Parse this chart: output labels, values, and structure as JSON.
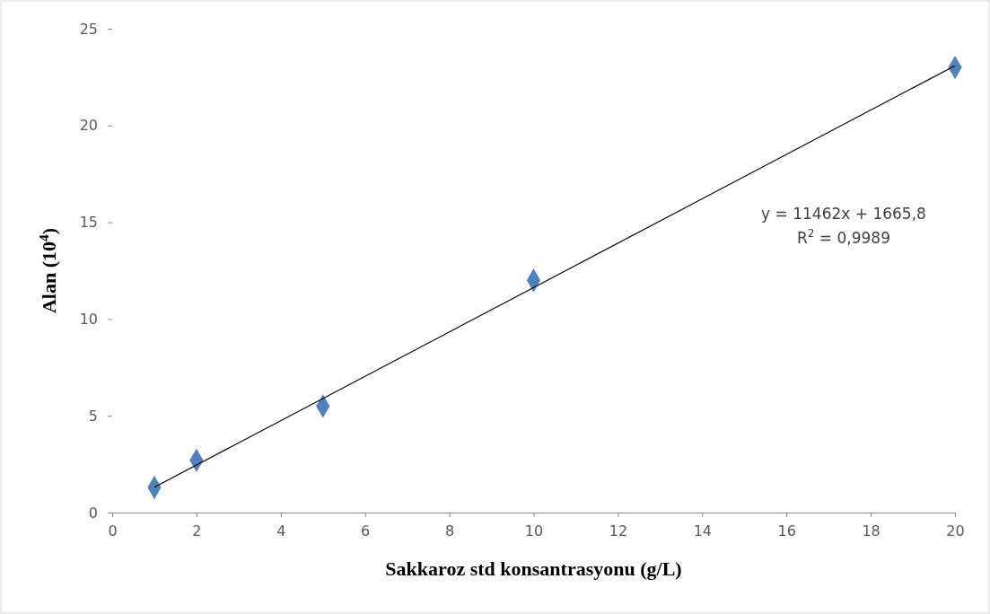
{
  "chart_data": {
    "type": "scatter",
    "xlabel": "Sakkaroz std konsantrasyonu (g/L)",
    "ylabel": "Alan (10$^{4}$)",
    "xlim": [
      0,
      20
    ],
    "xticks": [
      0,
      2,
      4,
      6,
      8,
      10,
      12,
      14,
      16,
      18,
      20
    ],
    "ylim": [
      0,
      25
    ],
    "yticks": [
      0,
      5,
      10,
      15,
      20,
      25
    ],
    "grid": false,
    "marker": "diamond",
    "series": [
      {
        "color": "#4f81bd",
        "x": [
          1,
          2,
          5,
          10,
          20
        ],
        "values": [
          1.3,
          2.7,
          5.5,
          12,
          23
        ]
      },
      {
        "type": "line",
        "color": "#000000",
        "marker": "none",
        "line_style": "solid",
        "x": [
          1,
          20
        ],
        "values": [
          1.31,
          23.09
        ]
      }
    ],
    "annotations": [
      "y = 11462x + 1665,8",
      "R$^{2}$ = 0,9989"
    ]
  }
}
